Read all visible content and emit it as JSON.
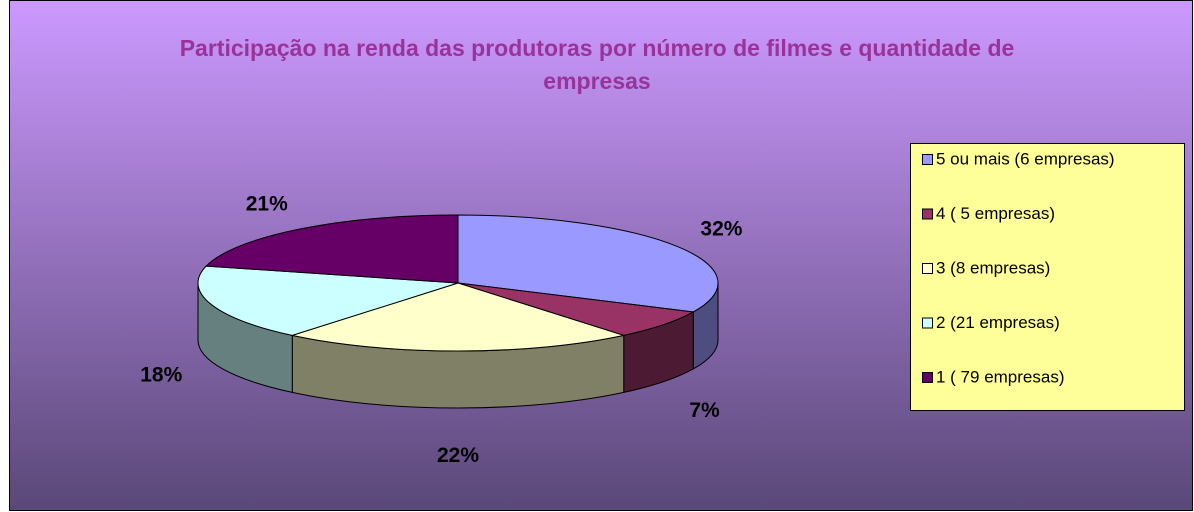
{
  "chart_data": {
    "type": "pie",
    "title": "Participação na renda das produtoras por número de filmes e quantidade de empresas",
    "categories": [
      "5 ou mais (6 empresas)",
      "4 ( 5 empresas)",
      "3 (8 empresas)",
      "2 (21 empresas)",
      "1 ( 79 empresas)"
    ],
    "values": [
      32,
      7,
      22,
      18,
      21
    ],
    "value_labels": [
      "32%",
      "7%",
      "22%",
      "18%",
      "21%"
    ],
    "colors": [
      "#9999ff",
      "#993366",
      "#ffffcc",
      "#ccffff",
      "#660066"
    ],
    "legend": "right"
  }
}
